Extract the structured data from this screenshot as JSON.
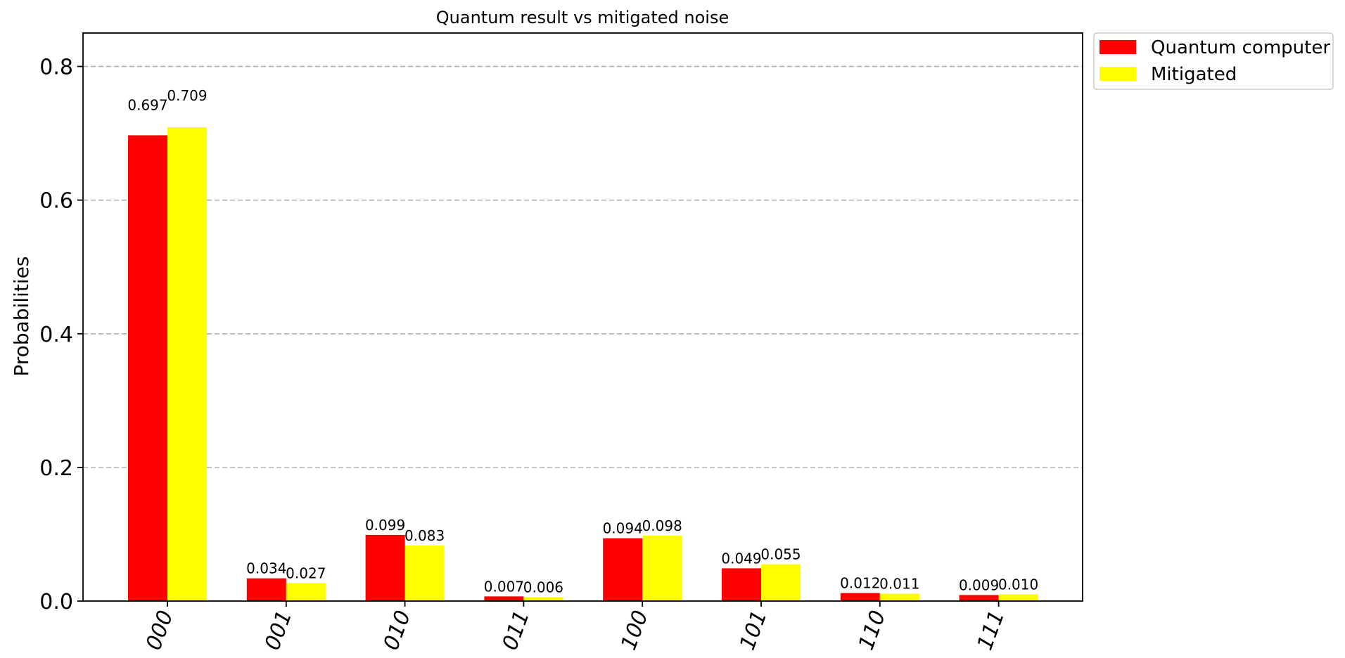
{
  "chart_data": {
    "type": "bar",
    "title": "Quantum result vs mitigated noise",
    "xlabel": "",
    "ylabel": "Probabilities",
    "categories": [
      "000",
      "001",
      "010",
      "011",
      "100",
      "101",
      "110",
      "111"
    ],
    "series": [
      {
        "name": "Quantum computer",
        "color": "#ff0000",
        "values": [
          0.697,
          0.034,
          0.099,
          0.007,
          0.094,
          0.049,
          0.012,
          0.009
        ],
        "labels": [
          "0.697",
          "0.034",
          "0.099",
          "0.007",
          "0.094",
          "0.049",
          "0.012",
          "0.009"
        ]
      },
      {
        "name": "Mitigated",
        "color": "#ffff00",
        "values": [
          0.709,
          0.027,
          0.083,
          0.006,
          0.098,
          0.055,
          0.011,
          0.01
        ],
        "labels": [
          "0.709",
          "0.027",
          "0.083",
          "0.006",
          "0.098",
          "0.055",
          "0.011",
          "0.010"
        ]
      }
    ],
    "ylim": [
      0,
      0.85
    ],
    "yticks": [
      0.0,
      0.2,
      0.4,
      0.6,
      0.8
    ],
    "ytick_labels": [
      "0.0",
      "0.2",
      "0.4",
      "0.6",
      "0.8"
    ],
    "grid": "y-dashed",
    "legend_position": "outside-top-right"
  }
}
